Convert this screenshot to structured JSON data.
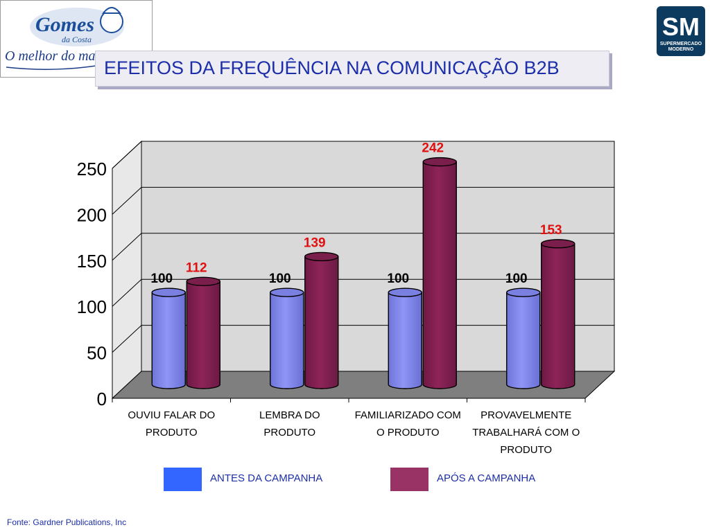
{
  "slide": {
    "title": "EFEITOS DA FREQUÊNCIA NA COMUNICAÇÃO B2B",
    "source": "Fonte: Gardner Publications, Inc"
  },
  "logo_left": {
    "brand_top": "Gomes",
    "brand_sub": "da Costa",
    "tagline": "O melhor do mar",
    "colors": {
      "brand": "#1b4f9c",
      "tagline": "#1b3a88"
    }
  },
  "logo_right": {
    "mark": "SM",
    "line1": "SUPERMERCADO",
    "line2": "MODERNO",
    "colors": {
      "background": "#0d3a5f"
    }
  },
  "legend": {
    "before_label": "ANTES DA CAMPANHA",
    "after_label": "APÓS A CAMPANHA"
  },
  "chart_data": {
    "type": "bar",
    "style": "3d-cylinder",
    "categories": [
      [
        "OUVIU FALAR DO",
        "PRODUTO"
      ],
      [
        "LEMBRA DO",
        "PRODUTO"
      ],
      [
        "FAMILIARIZADO COM",
        "O PRODUTO"
      ],
      [
        "PROVAVELMENTE",
        "TRABALHARÁ COM O",
        "PRODUTO"
      ]
    ],
    "series": [
      {
        "values": [
          100,
          100,
          100,
          100
        ],
        "color": "#8f95f5",
        "label_color": "#000000"
      },
      {
        "values": [
          112,
          139,
          242,
          153
        ],
        "color": "#8e2459",
        "label_color": "#e01010"
      }
    ],
    "ylim": [
      0,
      250
    ],
    "yticks": [
      0,
      50,
      100,
      150,
      200,
      250
    ],
    "grid": true,
    "legend_position": "bottom"
  },
  "colors": {
    "title": "#1c2ea8",
    "wall": "#d9d9d9",
    "floor": "#7f7f7f",
    "legend_before": "#3366ff",
    "legend_after": "#993366"
  }
}
